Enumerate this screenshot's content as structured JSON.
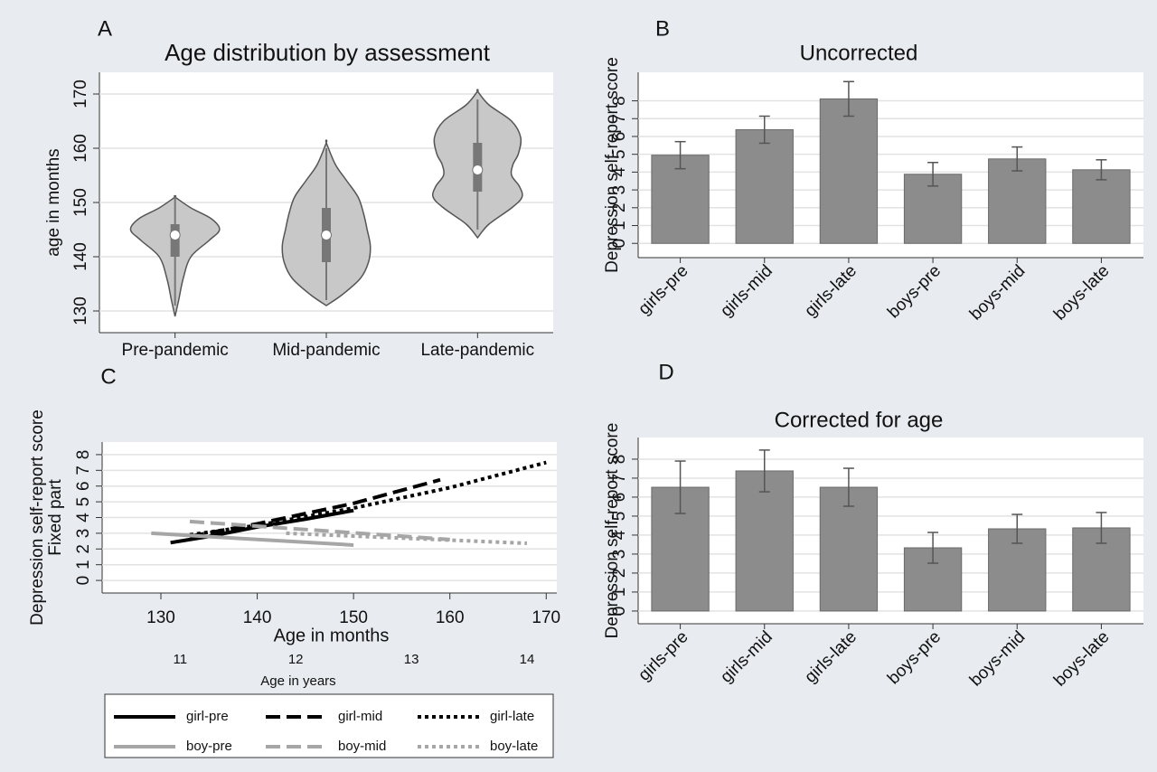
{
  "chart_data": [
    {
      "panel": "A",
      "type": "violin",
      "title": "Age distribution by assessment",
      "ylabel": "age in months",
      "categories": [
        "Pre-pandemic",
        "Mid-pandemic",
        "Late-pandemic"
      ],
      "ylim": [
        126,
        174
      ],
      "yticks": [
        130,
        140,
        150,
        160,
        170
      ],
      "grid": true,
      "color": "#c8c8c8",
      "stats": [
        {
          "median": 144,
          "q1": 140,
          "q3": 146,
          "whisker_low": 131,
          "whisker_high": 151,
          "density_y": [
            129,
            132,
            136,
            140,
            143,
            145,
            147,
            149,
            151
          ],
          "density": [
            0,
            0.08,
            0.18,
            0.35,
            0.75,
            0.98,
            0.8,
            0.35,
            0
          ]
        },
        {
          "median": 144,
          "q1": 139,
          "q3": 149,
          "whisker_low": 132,
          "whisker_high": 160,
          "density_y": [
            131,
            133,
            136,
            139,
            142,
            145,
            148,
            151,
            154,
            157,
            161
          ],
          "density": [
            0,
            0.35,
            0.75,
            0.93,
            0.97,
            0.9,
            0.82,
            0.7,
            0.45,
            0.2,
            0
          ]
        },
        {
          "median": 156,
          "q1": 152,
          "q3": 161,
          "whisker_low": 145,
          "whisker_high": 169,
          "density_y": [
            143.5,
            146,
            149,
            151,
            153,
            155,
            157,
            159,
            162,
            165,
            168,
            170.5
          ],
          "density": [
            0,
            0.25,
            0.75,
            0.98,
            0.92,
            0.75,
            0.78,
            0.9,
            0.95,
            0.75,
            0.25,
            0
          ]
        }
      ]
    },
    {
      "panel": "B",
      "type": "bar",
      "title": "Uncorrected",
      "ylabel": "Depression self-report score",
      "categories": [
        "girls-pre",
        "girls-mid",
        "girls-late",
        "boys-pre",
        "boys-mid",
        "boys-late"
      ],
      "values": [
        4.95,
        6.38,
        8.11,
        3.88,
        4.74,
        4.13
      ],
      "errors": [
        0.76,
        0.76,
        0.97,
        0.66,
        0.67,
        0.56
      ],
      "ylim": [
        -0.8,
        9.6
      ],
      "yticks": [
        0,
        1,
        2,
        3,
        4,
        5,
        6,
        7,
        8
      ],
      "grid": true,
      "color": "#8c8c8c"
    },
    {
      "panel": "C",
      "type": "line",
      "ylabel": "Depression self-report score",
      "ylabel_2": "Fixed part",
      "xlabel": "Age in months",
      "x2label": "Age in years",
      "xlim": [
        123.9,
        171.1
      ],
      "xticks": [
        130,
        140,
        150,
        160,
        170
      ],
      "x2ticks": [
        {
          "value": 132,
          "label": "11"
        },
        {
          "value": 144,
          "label": "12"
        },
        {
          "value": 156,
          "label": "13"
        },
        {
          "value": 168,
          "label": "14"
        }
      ],
      "ylim": [
        -0.8,
        8.8
      ],
      "yticks": [
        0,
        1,
        2,
        3,
        4,
        5,
        6,
        7,
        8
      ],
      "grid": true,
      "series": [
        {
          "name": "girl-pre",
          "color": "#000000",
          "dash": "solid",
          "x": [
            131,
            135,
            140,
            145,
            150
          ],
          "values": [
            2.4,
            2.8,
            3.4,
            3.9,
            4.45
          ]
        },
        {
          "name": "girl-mid",
          "color": "#000000",
          "dash": "dashed",
          "x": [
            133,
            140,
            150,
            159
          ],
          "values": [
            2.8,
            3.6,
            4.9,
            6.4
          ]
        },
        {
          "name": "girl-late",
          "color": "#000000",
          "dash": "dotted",
          "x": [
            133,
            140,
            150,
            160,
            170
          ],
          "values": [
            2.9,
            3.5,
            4.6,
            5.9,
            7.5
          ]
        },
        {
          "name": "boy-pre",
          "color": "#a6a6a6",
          "dash": "solid",
          "x": [
            129,
            150
          ],
          "values": [
            3.0,
            2.25
          ]
        },
        {
          "name": "boy-mid",
          "color": "#a6a6a6",
          "dash": "dashed",
          "x": [
            133,
            160
          ],
          "values": [
            3.75,
            2.6
          ]
        },
        {
          "name": "boy-late",
          "color": "#a6a6a6",
          "dash": "dotted",
          "x": [
            143,
            168
          ],
          "values": [
            3.0,
            2.36
          ]
        }
      ]
    },
    {
      "panel": "D",
      "type": "bar",
      "title": "Corrected for age",
      "ylabel": "Depression self-report score",
      "categories": [
        "girls-pre",
        "girls-mid",
        "girls-late",
        "boys-pre",
        "boys-mid",
        "boys-late"
      ],
      "values": [
        6.52,
        7.38,
        6.52,
        3.33,
        4.33,
        4.38
      ],
      "errors": [
        1.38,
        1.1,
        1.0,
        0.81,
        0.76,
        0.81
      ],
      "ylim": [
        -0.67,
        9.14
      ],
      "yticks": [
        0,
        1,
        2,
        3,
        4,
        5,
        6,
        7,
        8
      ],
      "grid": true,
      "color": "#8c8c8c"
    }
  ]
}
